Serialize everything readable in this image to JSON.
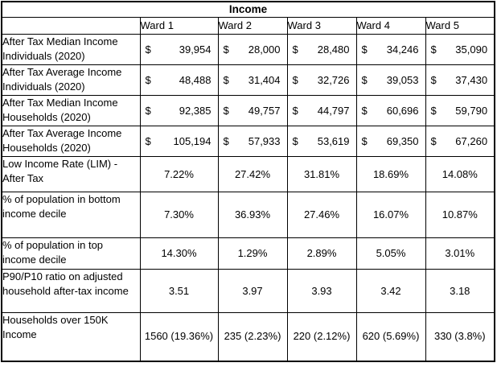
{
  "title": "Income",
  "table": {
    "corner_label": "",
    "columns": [
      "Ward 1",
      "Ward 2",
      "Ward 3",
      "Ward 4",
      "Ward 5"
    ],
    "currency_symbol": "$",
    "rows": [
      {
        "label": "After Tax Median Income Individuals (2020)",
        "type": "currency",
        "values": [
          "39,954",
          "28,000",
          "28,480",
          "34,246",
          "35,090"
        ]
      },
      {
        "label": "After Tax Average Income Individuals (2020)",
        "type": "currency",
        "values": [
          "48,488",
          "31,404",
          "32,726",
          "39,053",
          "37,430"
        ]
      },
      {
        "label": "After Tax Median Income Households (2020)",
        "type": "currency",
        "values": [
          "92,385",
          "49,757",
          "44,797",
          "60,696",
          "59,790"
        ]
      },
      {
        "label": "After Tax Average Income Households (2020)",
        "type": "currency",
        "values": [
          "105,194",
          "57,933",
          "53,619",
          "69,350",
          "67,260"
        ]
      },
      {
        "label": "Low Income Rate (LIM) - After Tax",
        "type": "plain",
        "values": [
          "7.22%",
          "27.42%",
          "31.81%",
          "18.69%",
          "14.08%"
        ]
      },
      {
        "label": "% of population in bottom income decile",
        "type": "plain",
        "values": [
          "7.30%",
          "36.93%",
          "27.46%",
          "16.07%",
          "10.87%"
        ]
      },
      {
        "label": "% of population in top income decile",
        "type": "plain",
        "values": [
          "14.30%",
          "1.29%",
          "2.89%",
          "5.05%",
          "3.01%"
        ]
      },
      {
        "label": "P90/P10 ratio on adjusted household after-tax income",
        "type": "plain",
        "values": [
          "3.51",
          "3.97",
          "3.93",
          "3.42",
          "3.18"
        ]
      },
      {
        "label": "Households over 150K Income",
        "type": "plain",
        "values": [
          "1560 (19.36%)",
          "235 (2.23%)",
          "220 (2.12%)",
          "620 (5.69%)",
          "330 (3.8%)"
        ]
      }
    ]
  },
  "chart_data": {
    "type": "table",
    "title": "Income",
    "categories": [
      "Ward 1",
      "Ward 2",
      "Ward 3",
      "Ward 4",
      "Ward 5"
    ],
    "series": [
      {
        "name": "After Tax Median Income Individuals (2020)",
        "unit": "$",
        "values": [
          39954,
          28000,
          28480,
          34246,
          35090
        ]
      },
      {
        "name": "After Tax Average Income Individuals (2020)",
        "unit": "$",
        "values": [
          48488,
          31404,
          32726,
          39053,
          37430
        ]
      },
      {
        "name": "After Tax Median Income Households (2020)",
        "unit": "$",
        "values": [
          92385,
          49757,
          44797,
          60696,
          59790
        ]
      },
      {
        "name": "After Tax Average Income Households (2020)",
        "unit": "$",
        "values": [
          105194,
          57933,
          53619,
          69350,
          67260
        ]
      },
      {
        "name": "Low Income Rate (LIM) - After Tax",
        "unit": "%",
        "values": [
          7.22,
          27.42,
          31.81,
          18.69,
          14.08
        ]
      },
      {
        "name": "% of population in bottom income decile",
        "unit": "%",
        "values": [
          7.3,
          36.93,
          27.46,
          16.07,
          10.87
        ]
      },
      {
        "name": "% of population in top income decile",
        "unit": "%",
        "values": [
          14.3,
          1.29,
          2.89,
          5.05,
          3.01
        ]
      },
      {
        "name": "P90/P10 ratio on adjusted household after-tax income",
        "unit": "ratio",
        "values": [
          3.51,
          3.97,
          3.93,
          3.42,
          3.18
        ]
      },
      {
        "name": "Households over 150K Income (count)",
        "unit": "households",
        "values": [
          1560,
          235,
          220,
          620,
          330
        ]
      },
      {
        "name": "Households over 150K Income (share)",
        "unit": "%",
        "values": [
          19.36,
          2.23,
          2.12,
          5.69,
          3.8
        ]
      }
    ]
  }
}
